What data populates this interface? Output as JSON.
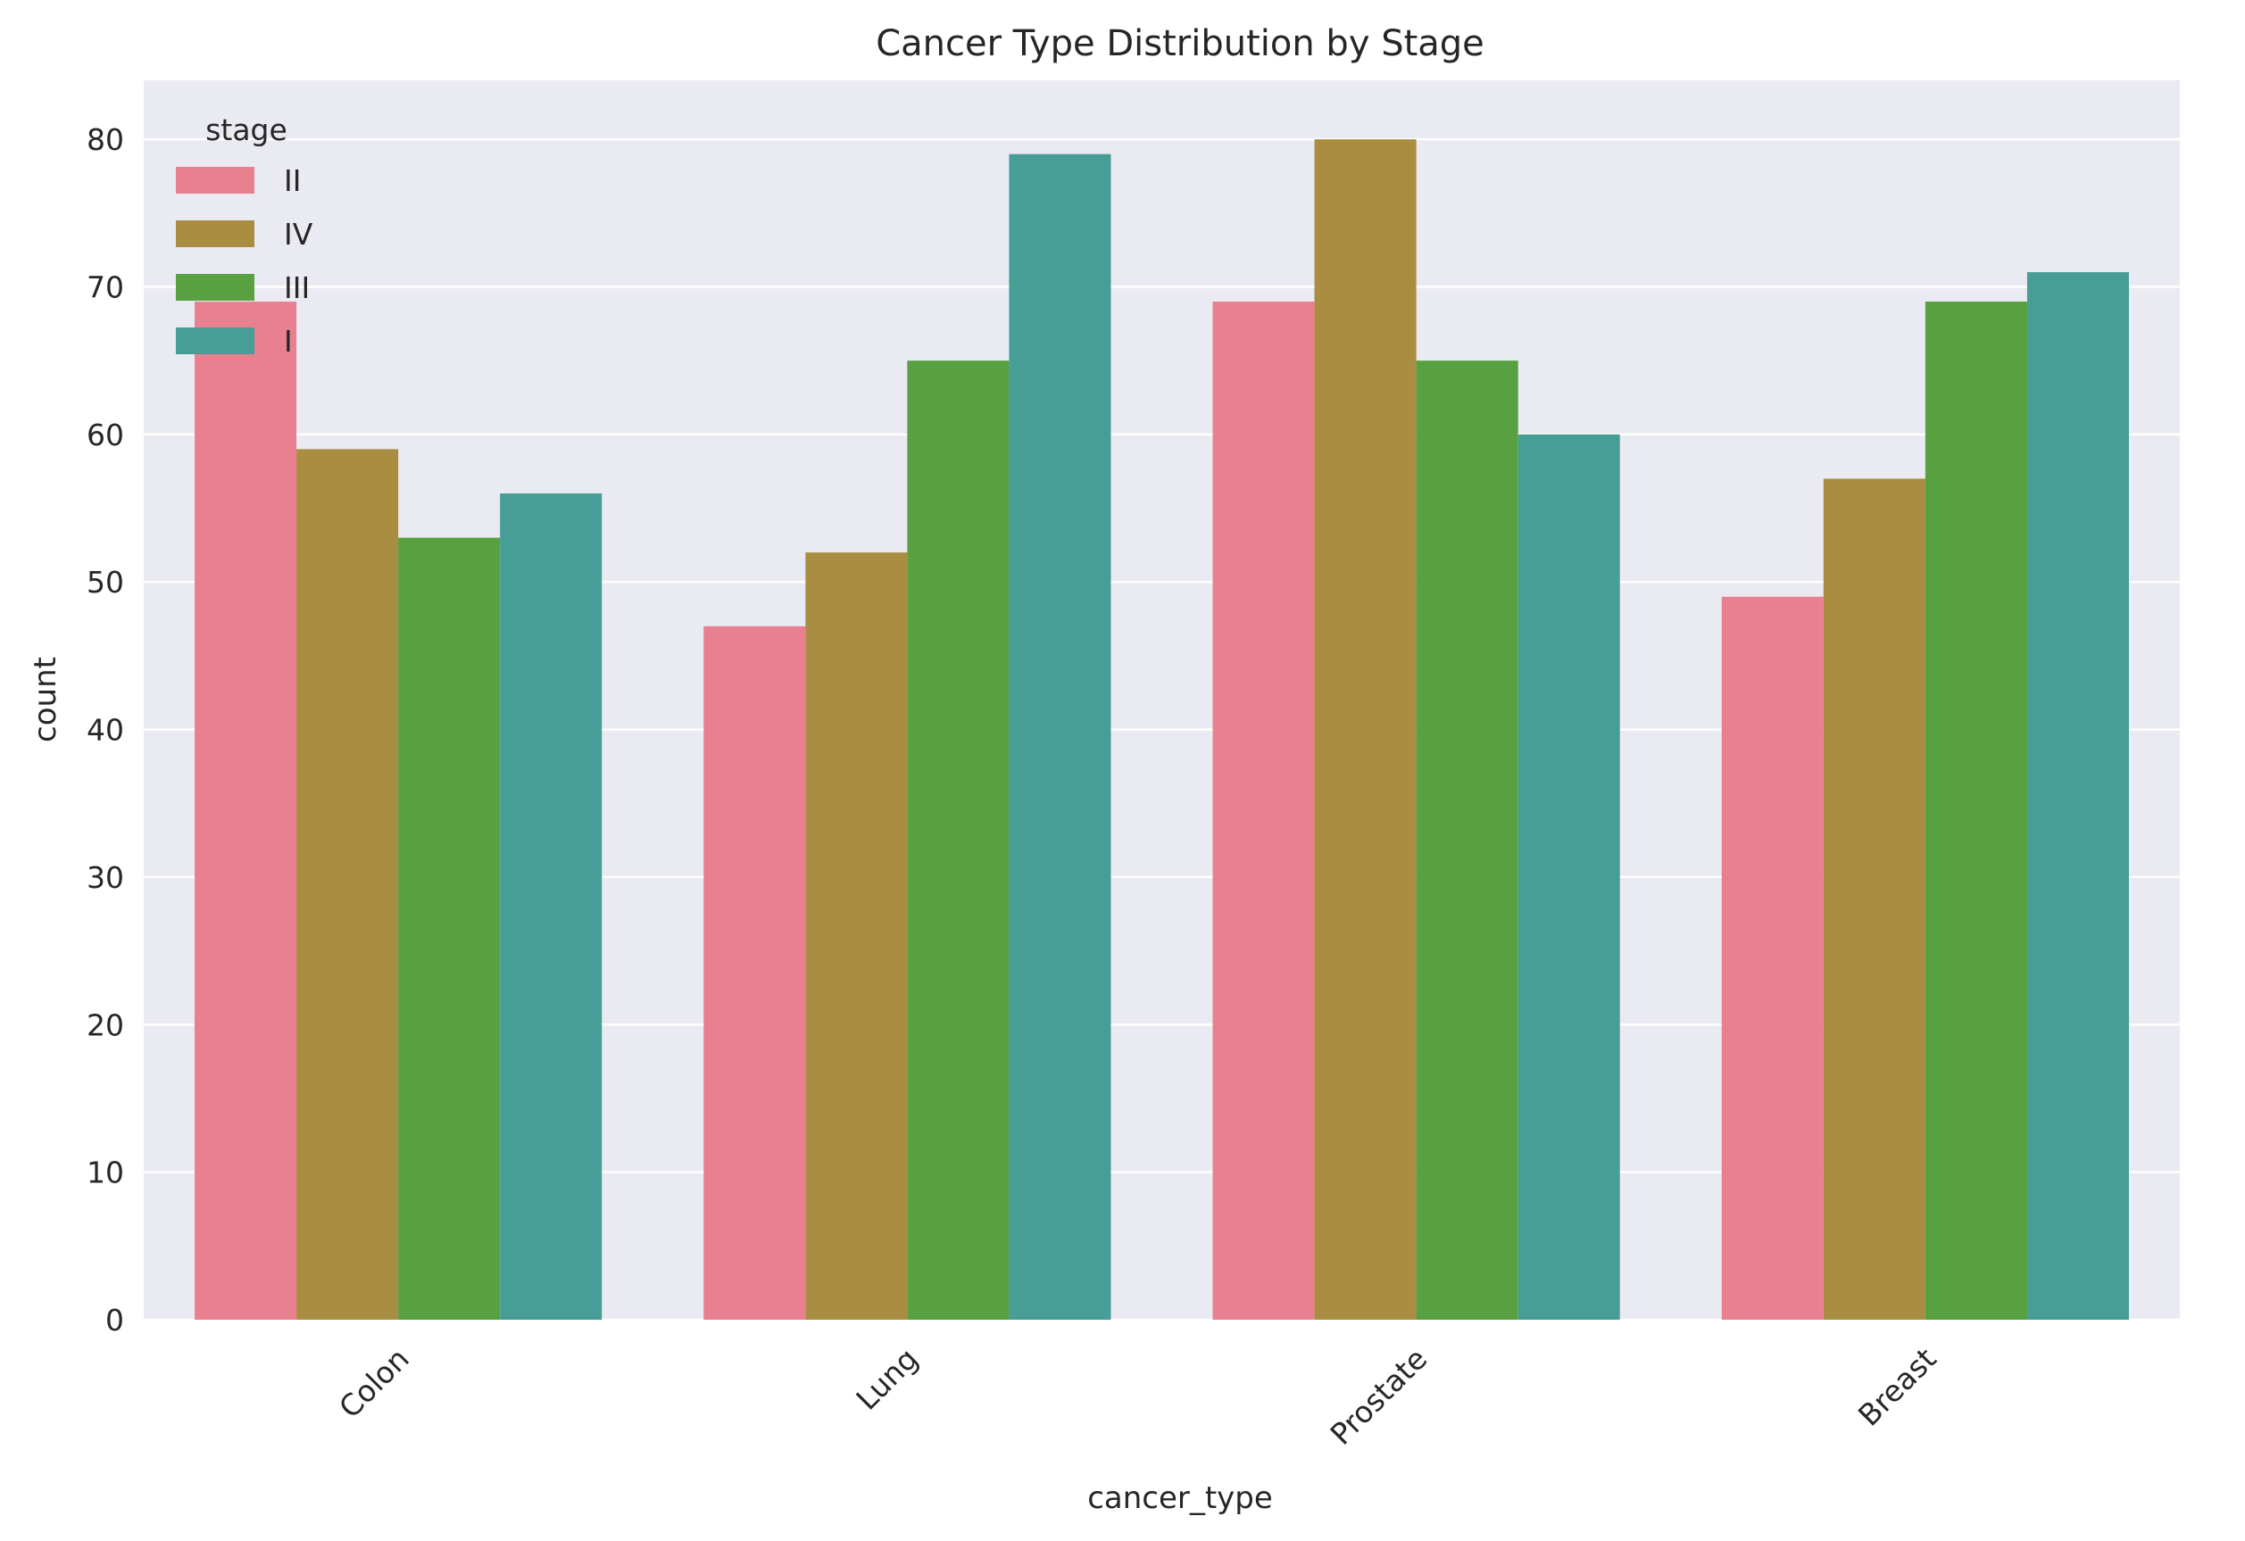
{
  "chart_data": {
    "type": "bar",
    "title": "Cancer Type Distribution by Stage",
    "xlabel": "cancer_type",
    "ylabel": "count",
    "categories": [
      "Colon",
      "Lung",
      "Prostate",
      "Breast"
    ],
    "series": [
      {
        "name": "II",
        "color": "#e8808f",
        "values": [
          69,
          47,
          69,
          49
        ]
      },
      {
        "name": "IV",
        "color": "#a98d40",
        "values": [
          59,
          52,
          80,
          57
        ]
      },
      {
        "name": "III",
        "color": "#57a140",
        "values": [
          53,
          65,
          65,
          69
        ]
      },
      {
        "name": "I",
        "color": "#469e97",
        "values": [
          56,
          79,
          60,
          71
        ]
      }
    ],
    "ylim": [
      0,
      84
    ],
    "yticks": [
      0,
      10,
      20,
      30,
      40,
      50,
      60,
      70,
      80
    ],
    "grid": true,
    "legend": {
      "title": "stage",
      "placement": "top-left"
    },
    "colors": {
      "plot_background": "#eaeaf2",
      "grid": "#ffffff",
      "text": "#262626"
    }
  }
}
